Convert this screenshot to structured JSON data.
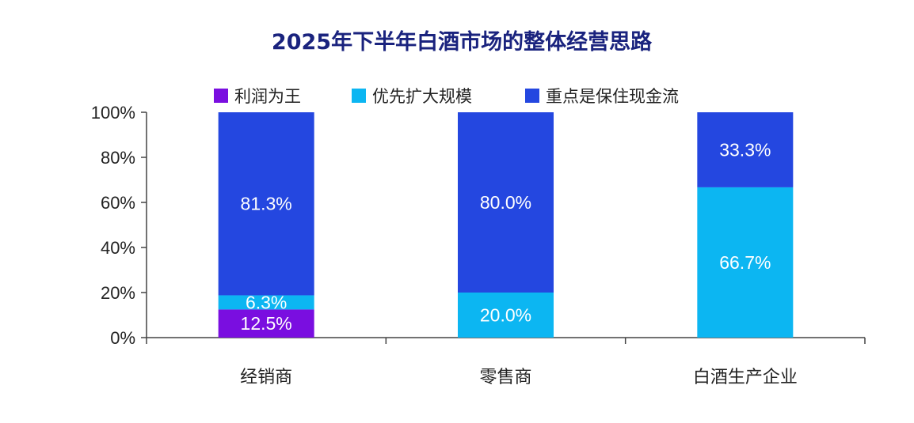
{
  "chart_data": {
    "type": "bar",
    "stacked": true,
    "percent": true,
    "title": "2025年下半年白酒市场的整体经营思路",
    "xlabel": "",
    "ylabel": "",
    "ylim": [
      0,
      100
    ],
    "y_ticks": [
      "0%",
      "20%",
      "40%",
      "60%",
      "80%",
      "100%"
    ],
    "categories": [
      "经销商",
      "零售商",
      "白酒生产企业"
    ],
    "legend_position": "top",
    "grid": false,
    "series": [
      {
        "name": "利润为王",
        "color": "#7a0ee0",
        "values": [
          12.5,
          0,
          0
        ],
        "labels": [
          "12.5%",
          "",
          ""
        ]
      },
      {
        "name": "优先扩大规模",
        "color": "#0cb6f2",
        "values": [
          6.3,
          20.0,
          66.7
        ],
        "labels": [
          "6.3%",
          "20.0%",
          "66.7%"
        ]
      },
      {
        "name": "重点是保住现金流",
        "color": "#2447e0",
        "values": [
          81.3,
          80.0,
          33.3
        ],
        "labels": [
          "81.3%",
          "80.0%",
          "33.3%"
        ]
      }
    ],
    "colors": {
      "title": "#1a237e",
      "text": "#222222",
      "axis": "#444444",
      "label_on_bar": "#ffffff"
    }
  }
}
